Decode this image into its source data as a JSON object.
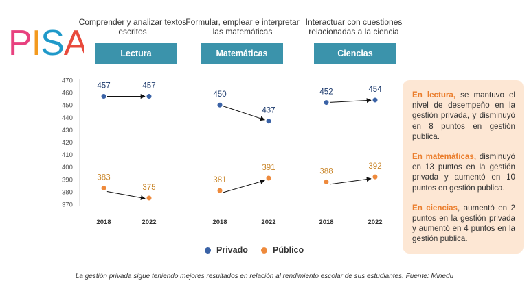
{
  "logo": {
    "text": "PISA",
    "letters": [
      {
        "ch": "P",
        "color": "#e8417f"
      },
      {
        "ch": "I",
        "color": "#f39a1e"
      },
      {
        "ch": "S",
        "color": "#1f99c9"
      },
      {
        "ch": "A",
        "color": "#e84a3c"
      }
    ]
  },
  "subjects": [
    {
      "description": "Comprender y analizar textos escritos",
      "label": "Lectura"
    },
    {
      "description": "Formular, emplear e interpretar las matemáticas",
      "label": "Matemáticas"
    },
    {
      "description": "Interactuar con cuestiones relacionadas a la ciencia",
      "label": "Ciencias"
    }
  ],
  "colors": {
    "accent": "#3b93ab",
    "privado": "#3a62a6",
    "publico": "#ee8a3c",
    "highlight": "#ea7d2c",
    "panel": "#fde7d4"
  },
  "chart_data": {
    "type": "scatter",
    "ylim": [
      365,
      470
    ],
    "yticks": [
      370,
      380,
      390,
      400,
      410,
      420,
      430,
      440,
      450,
      460,
      470
    ],
    "groups": [
      {
        "subject": "Lectura",
        "x": [
          "2018",
          "2022"
        ],
        "privado": [
          457,
          457
        ],
        "publico": [
          383,
          375
        ]
      },
      {
        "subject": "Matemáticas",
        "x": [
          "2018",
          "2022"
        ],
        "privado": [
          450,
          437
        ],
        "publico": [
          381,
          391
        ]
      },
      {
        "subject": "Ciencias",
        "x": [
          "2018",
          "2022"
        ],
        "privado": [
          452,
          454
        ],
        "publico": [
          388,
          392
        ]
      }
    ],
    "legend": [
      {
        "name": "Privado",
        "key": "privado"
      },
      {
        "name": "Público",
        "key": "publico"
      }
    ]
  },
  "panel": [
    {
      "highlight": "En lectura,",
      "text": " se mantuvo el nivel de desempeño en la gestión privada, y disminuyó en 8 puntos en gestión publica."
    },
    {
      "highlight": "En matemáticas,",
      "text": " disminuyó en 13 puntos en la gestión privada y aumentó en 10 puntos en gestión publica."
    },
    {
      "highlight": "En ciencias",
      "text": ", aumentó en 2 puntos en la gestión privada y aumentó en 4 puntos en la gestión publica."
    }
  ],
  "caption": "La gestión privada sigue teniendo mejores resultados en relación al rendimiento escolar de sus estudiantes. Fuente: Minedu"
}
